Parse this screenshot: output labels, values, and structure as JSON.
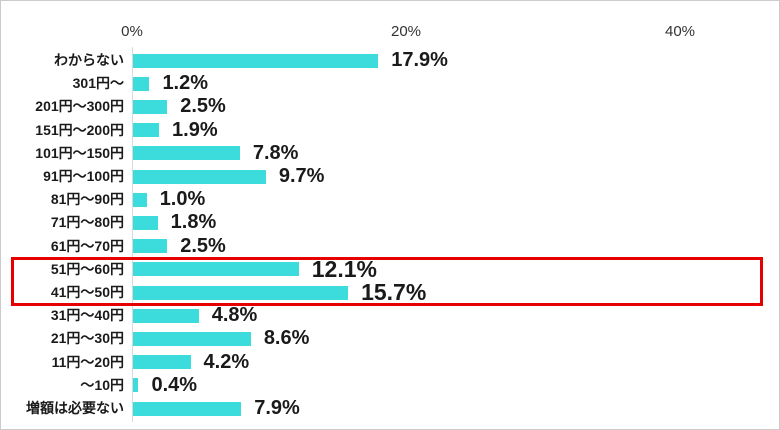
{
  "chart_data": {
    "type": "bar",
    "orientation": "horizontal",
    "title": "",
    "xlabel": "",
    "ylabel": "",
    "categories": [
      "わからない",
      "301円〜",
      "201円〜300円",
      "151円〜200円",
      "101円〜150円",
      "91円〜100円",
      "81円〜90円",
      "71円〜80円",
      "61円〜70円",
      "51円〜60円",
      "41円〜50円",
      "31円〜40円",
      "21円〜30円",
      "11円〜20円",
      "〜10円",
      "増額は必要ない"
    ],
    "values": [
      17.9,
      1.2,
      2.5,
      1.9,
      7.8,
      9.7,
      1.0,
      1.8,
      2.5,
      12.1,
      15.7,
      4.8,
      8.6,
      4.2,
      0.4,
      7.9
    ],
    "value_labels": [
      "17.9%",
      "1.2%",
      "2.5%",
      "1.9%",
      "7.8%",
      "9.7%",
      "1.0%",
      "1.8%",
      "2.5%",
      "12.1%",
      "15.7%",
      "4.8%",
      "8.6%",
      "4.2%",
      "0.4%",
      "7.9%"
    ],
    "x_axis": {
      "ticks": [
        "0%",
        "20%",
        "40%"
      ],
      "tick_values": [
        0,
        20,
        40
      ],
      "range": [
        0,
        40
      ]
    },
    "highlight": {
      "row_indices": [
        9,
        10
      ],
      "rows": [
        "51円〜60円",
        "41円〜50円"
      ],
      "color": "#e60000"
    },
    "bar_color": "#3ddcdc",
    "grid": false,
    "legend": false
  }
}
